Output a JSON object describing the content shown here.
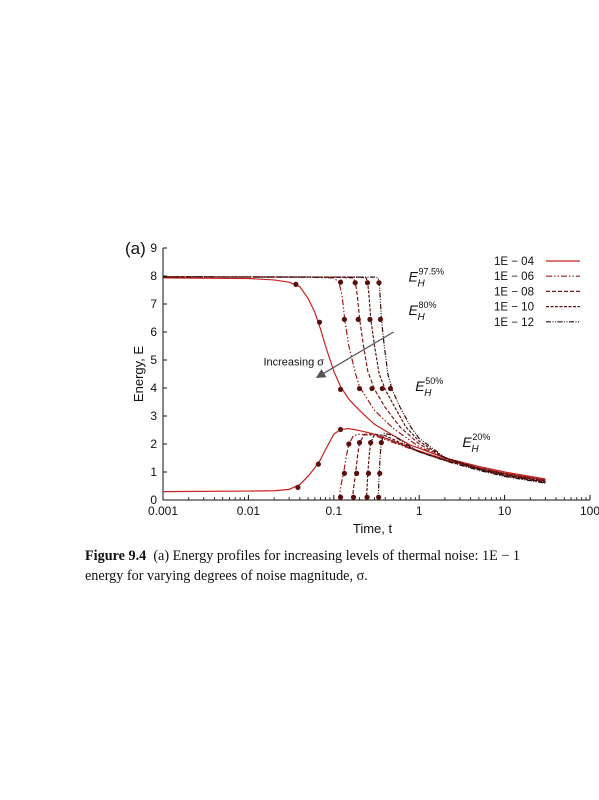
{
  "panel_label": "(a)",
  "caption": {
    "label": "Figure 9.4",
    "line1": "(a) Energy profiles for increasing levels of thermal noise: 1E − 1",
    "line2": "energy for varying degrees of noise magnitude, σ."
  },
  "chart_data": {
    "type": "line",
    "title": "",
    "xlabel": "Time, t",
    "ylabel": "Energy, E",
    "xscale": "log",
    "xlim": [
      0.001,
      100
    ],
    "ylim": [
      0,
      9
    ],
    "xticks": [
      0.001,
      0.01,
      0.1,
      1,
      10,
      100
    ],
    "xtick_labels": [
      "0.001",
      "0.01",
      "0.1",
      "1",
      "10",
      "100"
    ],
    "yticks": [
      0,
      1,
      2,
      3,
      4,
      5,
      6,
      7,
      8,
      9
    ],
    "ytick_labels": [
      "0",
      "1",
      "2",
      "3",
      "4",
      "5",
      "6",
      "7",
      "8",
      "9"
    ],
    "grid": false,
    "legend_position": "top-right",
    "arrow_annotation": "Increasing σ",
    "level_annotations": [
      {
        "label": "E",
        "sub": "H",
        "sup": "97.5%",
        "x": 0.75,
        "y": 7.8
      },
      {
        "label": "E",
        "sub": "H",
        "sup": "80%",
        "x": 0.75,
        "y": 6.6
      },
      {
        "label": "E",
        "sub": "H",
        "sup": "50%",
        "x": 0.9,
        "y": 3.9
      },
      {
        "label": "E",
        "sub": "H",
        "sup": "20%",
        "x": 3.2,
        "y": 1.9
      }
    ],
    "series": [
      {
        "name": "1E − 04",
        "color": "#c8211f",
        "dash": "solid",
        "upper": [
          [
            0.001,
            7.93
          ],
          [
            0.01,
            7.91
          ],
          [
            0.02,
            7.86
          ],
          [
            0.03,
            7.78
          ],
          [
            0.04,
            7.62
          ],
          [
            0.05,
            7.2
          ],
          [
            0.06,
            6.7
          ],
          [
            0.07,
            6.1
          ],
          [
            0.08,
            5.5
          ],
          [
            0.1,
            4.6
          ],
          [
            0.12,
            4.05
          ],
          [
            0.15,
            3.6
          ],
          [
            0.2,
            3.2
          ],
          [
            0.3,
            2.7
          ],
          [
            0.5,
            2.3
          ],
          [
            0.8,
            1.95
          ],
          [
            1,
            1.85
          ],
          [
            2,
            1.5
          ],
          [
            5,
            1.2
          ],
          [
            10,
            1.0
          ],
          [
            30,
            0.75
          ]
        ],
        "lower": [
          [
            0.001,
            0.3
          ],
          [
            0.01,
            0.32
          ],
          [
            0.02,
            0.33
          ],
          [
            0.03,
            0.38
          ],
          [
            0.04,
            0.55
          ],
          [
            0.05,
            0.85
          ],
          [
            0.06,
            1.15
          ],
          [
            0.07,
            1.45
          ],
          [
            0.08,
            1.8
          ],
          [
            0.1,
            2.35
          ],
          [
            0.12,
            2.52
          ],
          [
            0.15,
            2.55
          ],
          [
            0.2,
            2.48
          ],
          [
            0.3,
            2.35
          ],
          [
            0.5,
            2.1
          ],
          [
            0.8,
            1.85
          ],
          [
            1,
            1.75
          ],
          [
            2,
            1.45
          ],
          [
            5,
            1.15
          ],
          [
            10,
            0.95
          ],
          [
            30,
            0.7
          ]
        ],
        "markers": [
          [
            0.036,
            7.7
          ],
          [
            0.068,
            6.35
          ],
          [
            0.12,
            3.95
          ],
          [
            0.038,
            0.45
          ],
          [
            0.066,
            1.28
          ],
          [
            0.12,
            2.52
          ]
        ]
      },
      {
        "name": "1E − 06",
        "color": "#9a1f1d",
        "dash": "6,2,1.5,2,1.5,2",
        "upper": [
          [
            0.001,
            7.97
          ],
          [
            0.05,
            7.96
          ],
          [
            0.1,
            7.93
          ],
          [
            0.115,
            7.78
          ],
          [
            0.125,
            7.3
          ],
          [
            0.135,
            6.4
          ],
          [
            0.15,
            5.5
          ],
          [
            0.18,
            4.5
          ],
          [
            0.2,
            4.05
          ],
          [
            0.3,
            3.2
          ],
          [
            0.5,
            2.55
          ],
          [
            1,
            1.9
          ],
          [
            2,
            1.5
          ],
          [
            5,
            1.15
          ],
          [
            10,
            0.95
          ],
          [
            30,
            0.72
          ]
        ],
        "lower": [
          [
            0.115,
            0.0
          ],
          [
            0.12,
            0.45
          ],
          [
            0.13,
            0.95
          ],
          [
            0.14,
            1.55
          ],
          [
            0.15,
            2.0
          ],
          [
            0.17,
            2.3
          ],
          [
            0.2,
            2.35
          ],
          [
            0.3,
            2.3
          ],
          [
            0.5,
            2.05
          ],
          [
            1,
            1.72
          ],
          [
            2,
            1.45
          ],
          [
            5,
            1.1
          ],
          [
            10,
            0.9
          ],
          [
            30,
            0.68
          ]
        ],
        "markers": [
          [
            0.12,
            7.78
          ],
          [
            0.133,
            6.45
          ],
          [
            0.2,
            3.98
          ],
          [
            0.12,
            0.1
          ],
          [
            0.133,
            0.95
          ],
          [
            0.15,
            2.0
          ]
        ]
      },
      {
        "name": "1E − 08",
        "color": "#7a1a18",
        "dash": "4,2",
        "upper": [
          [
            0.001,
            7.97
          ],
          [
            0.1,
            7.96
          ],
          [
            0.17,
            7.93
          ],
          [
            0.18,
            7.75
          ],
          [
            0.19,
            7.2
          ],
          [
            0.2,
            6.5
          ],
          [
            0.22,
            5.6
          ],
          [
            0.25,
            4.6
          ],
          [
            0.3,
            3.95
          ],
          [
            0.4,
            3.3
          ],
          [
            0.6,
            2.6
          ],
          [
            1,
            2.0
          ],
          [
            2,
            1.5
          ],
          [
            5,
            1.15
          ],
          [
            10,
            0.95
          ],
          [
            30,
            0.7
          ]
        ],
        "lower": [
          [
            0.165,
            0.0
          ],
          [
            0.17,
            0.4
          ],
          [
            0.18,
            0.95
          ],
          [
            0.19,
            1.6
          ],
          [
            0.2,
            2.05
          ],
          [
            0.23,
            2.35
          ],
          [
            0.3,
            2.35
          ],
          [
            0.5,
            2.1
          ],
          [
            1,
            1.72
          ],
          [
            2,
            1.42
          ],
          [
            5,
            1.1
          ],
          [
            10,
            0.88
          ],
          [
            30,
            0.66
          ]
        ],
        "markers": [
          [
            0.178,
            7.76
          ],
          [
            0.193,
            6.45
          ],
          [
            0.28,
            3.98
          ],
          [
            0.17,
            0.1
          ],
          [
            0.185,
            0.95
          ],
          [
            0.2,
            2.05
          ]
        ]
      },
      {
        "name": "1E − 10",
        "color": "#5a1414",
        "dash": "3,1.5",
        "upper": [
          [
            0.001,
            7.97
          ],
          [
            0.2,
            7.96
          ],
          [
            0.24,
            7.93
          ],
          [
            0.25,
            7.75
          ],
          [
            0.26,
            7.2
          ],
          [
            0.27,
            6.5
          ],
          [
            0.3,
            5.5
          ],
          [
            0.34,
            4.5
          ],
          [
            0.4,
            3.95
          ],
          [
            0.5,
            3.4
          ],
          [
            0.7,
            2.6
          ],
          [
            1,
            2.1
          ],
          [
            2,
            1.5
          ],
          [
            5,
            1.12
          ],
          [
            10,
            0.92
          ],
          [
            30,
            0.66
          ]
        ],
        "lower": [
          [
            0.24,
            0.0
          ],
          [
            0.245,
            0.4
          ],
          [
            0.25,
            0.95
          ],
          [
            0.26,
            1.6
          ],
          [
            0.27,
            2.05
          ],
          [
            0.3,
            2.35
          ],
          [
            0.4,
            2.3
          ],
          [
            0.6,
            2.05
          ],
          [
            1,
            1.72
          ],
          [
            2,
            1.42
          ],
          [
            5,
            1.08
          ],
          [
            10,
            0.86
          ],
          [
            30,
            0.63
          ]
        ],
        "markers": [
          [
            0.248,
            7.76
          ],
          [
            0.265,
            6.45
          ],
          [
            0.37,
            3.98
          ],
          [
            0.245,
            0.1
          ],
          [
            0.255,
            0.95
          ],
          [
            0.27,
            2.05
          ]
        ]
      },
      {
        "name": "1E − 12",
        "color": "#2f0b0b",
        "dash": "5,1.5,1,1.5,1,1.5",
        "upper": [
          [
            0.001,
            7.97
          ],
          [
            0.3,
            7.96
          ],
          [
            0.33,
            7.93
          ],
          [
            0.34,
            7.75
          ],
          [
            0.35,
            7.2
          ],
          [
            0.36,
            6.5
          ],
          [
            0.39,
            5.5
          ],
          [
            0.43,
            4.5
          ],
          [
            0.48,
            3.95
          ],
          [
            0.6,
            3.3
          ],
          [
            0.8,
            2.6
          ],
          [
            1,
            2.2
          ],
          [
            2,
            1.52
          ],
          [
            5,
            1.1
          ],
          [
            10,
            0.9
          ],
          [
            30,
            0.62
          ]
        ],
        "lower": [
          [
            0.33,
            0.0
          ],
          [
            0.335,
            0.4
          ],
          [
            0.34,
            0.95
          ],
          [
            0.35,
            1.6
          ],
          [
            0.36,
            2.05
          ],
          [
            0.39,
            2.38
          ],
          [
            0.5,
            2.3
          ],
          [
            0.7,
            2.0
          ],
          [
            1,
            1.72
          ],
          [
            2,
            1.4
          ],
          [
            5,
            1.06
          ],
          [
            10,
            0.84
          ],
          [
            30,
            0.6
          ]
        ],
        "markers": [
          [
            0.338,
            7.76
          ],
          [
            0.352,
            6.45
          ],
          [
            0.46,
            3.98
          ],
          [
            0.335,
            0.1
          ],
          [
            0.345,
            0.95
          ],
          [
            0.36,
            2.05
          ]
        ]
      }
    ]
  }
}
